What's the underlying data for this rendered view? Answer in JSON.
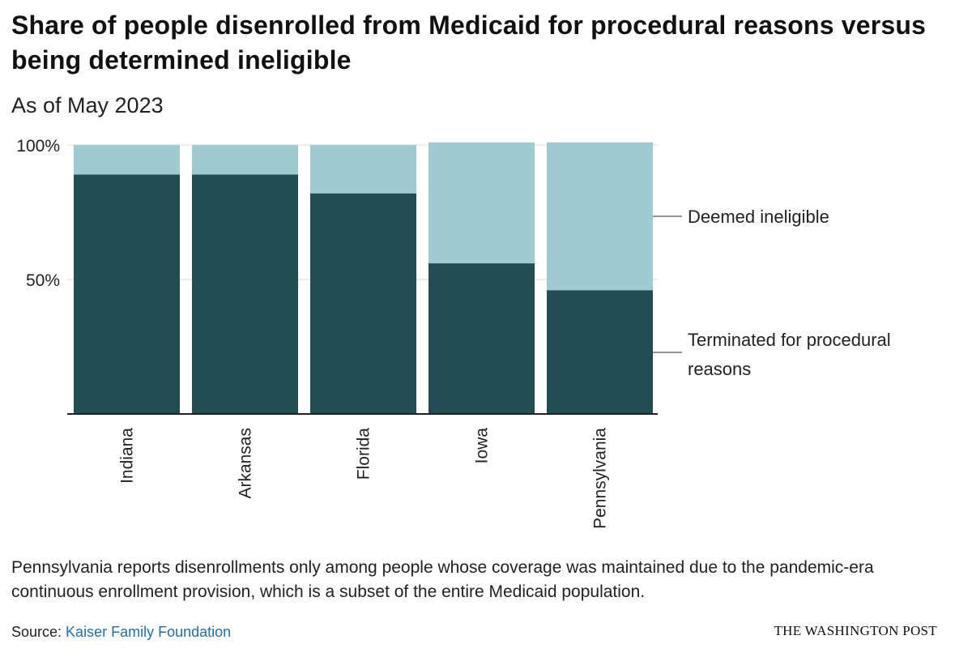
{
  "title": "Share of people disenrolled from Medicaid for procedural reasons versus being determined ineligible",
  "subtitle": "As of May 2023",
  "note": "Pennsylvania reports disenrollments only among people whose coverage was maintained due to the pandemic-era continuous enrollment provision, which is a subset of the entire Medicaid population.",
  "source": {
    "prefix": "Source: ",
    "link_text": "Kaiser Family Foundation"
  },
  "brand": "THE WASHINGTON POST",
  "colors": {
    "procedural": "#234d55",
    "ineligible": "#9ecad1",
    "axis": "#222222",
    "grid": "#d9d9d9",
    "link": "#1f6fb2"
  },
  "chart_data": {
    "type": "bar",
    "stacked": true,
    "categories": [
      "Indiana",
      "Arkansas",
      "Florida",
      "Iowa",
      "Pennsylvania"
    ],
    "series": [
      {
        "name": "Terminated for procedural reasons",
        "values": [
          89,
          89,
          82,
          56,
          46
        ]
      },
      {
        "name": "Deemed ineligible",
        "values": [
          11,
          11,
          18,
          45,
          55
        ]
      }
    ],
    "y_ticks": [
      {
        "value": 50,
        "label": "50%"
      },
      {
        "value": 100,
        "label": "100%"
      }
    ],
    "ylim": [
      0,
      100
    ],
    "legend_labels": {
      "ineligible": [
        "Deemed ineligible"
      ],
      "procedural": [
        "Terminated for procedural",
        "reasons"
      ]
    },
    "legend_placement": "right"
  }
}
